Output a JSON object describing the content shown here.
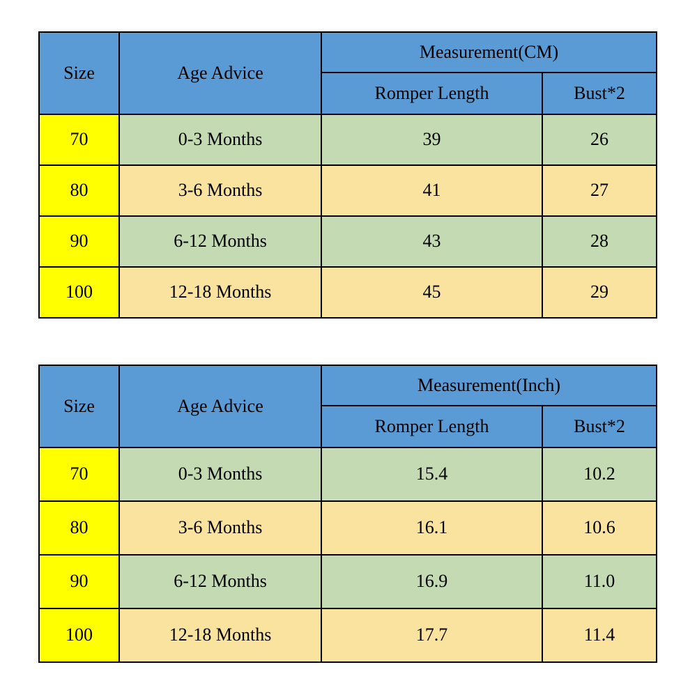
{
  "colors": {
    "header_blue": "#5B9BD5",
    "size_yellow": "#FFFF00",
    "row_green": "#C3DAB3",
    "row_tan": "#FAE29F",
    "border": "#000000",
    "background": "#FFFFFF"
  },
  "chart_data": [
    {
      "type": "table",
      "title": "Measurement(CM)",
      "columns": [
        "Size",
        "Age Advice",
        "Romper Length",
        "Bust*2"
      ],
      "rows": [
        [
          "70",
          "0-3 Months",
          "39",
          "26"
        ],
        [
          "80",
          "3-6 Months",
          "41",
          "27"
        ],
        [
          "90",
          "6-12 Months",
          "43",
          "28"
        ],
        [
          "100",
          "12-18 Months",
          "45",
          "29"
        ]
      ]
    },
    {
      "type": "table",
      "title": "Measurement(Inch)",
      "columns": [
        "Size",
        "Age Advice",
        "Romper Length",
        "Bust*2"
      ],
      "rows": [
        [
          "70",
          "0-3 Months",
          "15.4",
          "10.2"
        ],
        [
          "80",
          "3-6 Months",
          "16.1",
          "10.6"
        ],
        [
          "90",
          "6-12 Months",
          "16.9",
          "11.0"
        ],
        [
          "100",
          "12-18 Months",
          "17.7",
          "11.4"
        ]
      ]
    }
  ],
  "tables": [
    {
      "headers": {
        "size": "Size",
        "age": "Age Advice",
        "measurement": "Measurement(CM)",
        "length": "Romper Length",
        "bust": "Bust*2"
      },
      "rows": [
        {
          "size": "70",
          "age": "0-3 Months",
          "length": "39",
          "bust": "26"
        },
        {
          "size": "80",
          "age": "3-6 Months",
          "length": "41",
          "bust": "27"
        },
        {
          "size": "90",
          "age": "6-12 Months",
          "length": "43",
          "bust": "28"
        },
        {
          "size": "100",
          "age": "12-18 Months",
          "length": "45",
          "bust": "29"
        }
      ]
    },
    {
      "headers": {
        "size": "Size",
        "age": "Age Advice",
        "measurement": "Measurement(Inch)",
        "length": "Romper Length",
        "bust": "Bust*2"
      },
      "rows": [
        {
          "size": "70",
          "age": "0-3 Months",
          "length": "15.4",
          "bust": "10.2"
        },
        {
          "size": "80",
          "age": "3-6 Months",
          "length": "16.1",
          "bust": "10.6"
        },
        {
          "size": "90",
          "age": "6-12 Months",
          "length": "16.9",
          "bust": "11.0"
        },
        {
          "size": "100",
          "age": "12-18 Months",
          "length": "17.7",
          "bust": "11.4"
        }
      ]
    }
  ]
}
